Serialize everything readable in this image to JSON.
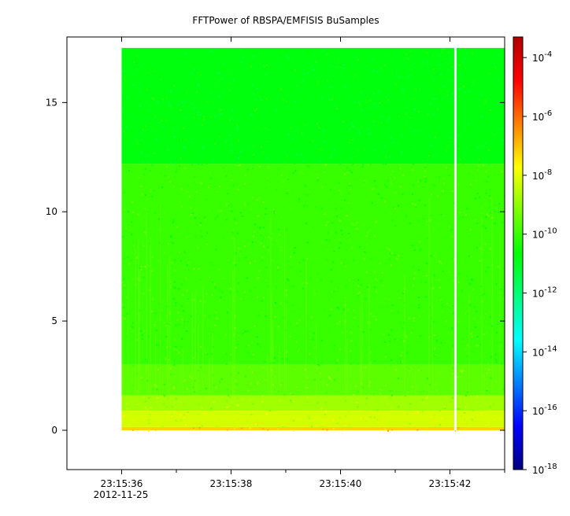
{
  "chart_data": {
    "type": "heatmap",
    "title": "FFTPower of RBSPA/EMFISIS  BuSamples",
    "xlabel": "",
    "ylabel": "",
    "x_range": [
      "23:15:35.0",
      "23:15:43.0"
    ],
    "x_ticks": [
      {
        "label": "23:15:36",
        "sublabel": "2012-11-25",
        "value_s": 36
      },
      {
        "label": "23:15:38",
        "sublabel": "",
        "value_s": 38
      },
      {
        "label": "23:15:40",
        "sublabel": "",
        "value_s": 40
      },
      {
        "label": "23:15:42",
        "sublabel": "",
        "value_s": 42
      }
    ],
    "x_minor_ticks_s": [
      37,
      39,
      41,
      43
    ],
    "ylim": [
      -1.8,
      18.0
    ],
    "y_ticks": [
      {
        "label": "0",
        "value": 0
      },
      {
        "label": "5",
        "value": 5
      },
      {
        "label": "10",
        "value": 10
      },
      {
        "label": "15",
        "value": 15
      }
    ],
    "data_extent": {
      "x_start_s": 36.0,
      "x_end_s": 43.3,
      "y_min": 0,
      "y_max": 17.5
    },
    "data_gap_s": 42.1,
    "spectral_bands": [
      {
        "y_from": 0.0,
        "y_to": 0.15,
        "level": -7.2
      },
      {
        "y_from": 0.15,
        "y_to": 0.9,
        "level": -8.2
      },
      {
        "y_from": 0.9,
        "y_to": 1.6,
        "level": -8.8
      },
      {
        "y_from": 1.6,
        "y_to": 3.0,
        "level": -9.6
      },
      {
        "y_from": 3.0,
        "y_to": 12.2,
        "level": -10.0
      },
      {
        "y_from": 12.2,
        "y_to": 17.5,
        "level": -10.8
      }
    ],
    "colorbar": {
      "scale": "log",
      "range": [
        -18,
        -3.3
      ],
      "ticks": [
        {
          "base": "10",
          "exp": "-4",
          "value": -4
        },
        {
          "base": "10",
          "exp": "-6",
          "value": -6
        },
        {
          "base": "10",
          "exp": "-8",
          "value": -8
        },
        {
          "base": "10",
          "exp": "-10",
          "value": -10
        },
        {
          "base": "10",
          "exp": "-12",
          "value": -12
        },
        {
          "base": "10",
          "exp": "-14",
          "value": -14
        },
        {
          "base": "10",
          "exp": "-16",
          "value": -16
        },
        {
          "base": "10",
          "exp": "-18",
          "value": -18
        }
      ],
      "colormap": [
        "#00007f",
        "#0000ff",
        "#007fff",
        "#00ffff",
        "#00ff7f",
        "#00ff00",
        "#7fff00",
        "#ffff00",
        "#ff7f00",
        "#ff0000",
        "#b00000"
      ]
    },
    "grid": false,
    "legend": "colorbar-right"
  }
}
